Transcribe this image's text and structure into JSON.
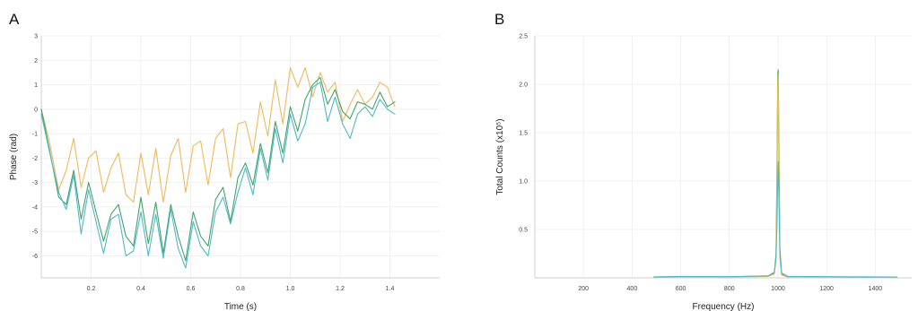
{
  "chart_data": [
    {
      "panel": "A",
      "type": "line",
      "xlabel": "Time (s)",
      "ylabel": "Phase (rad)",
      "xlim": [
        0,
        1.6
      ],
      "ylim": [
        -6.9,
        3
      ],
      "xticks": [
        "0.2",
        "0.4",
        "0.6",
        "0.8",
        "1.0",
        "1.2",
        "1.4"
      ],
      "xtick_values": [
        0.2,
        0.4,
        0.6,
        0.8,
        1.0,
        1.2,
        1.4
      ],
      "yticks": [
        "3",
        "2",
        "1",
        "0",
        "-1",
        "-2",
        "-3",
        "-4",
        "-5",
        "-6"
      ],
      "ytick_values": [
        3,
        2,
        1,
        0,
        -1,
        -2,
        -3,
        -4,
        -5,
        -6
      ],
      "grid": true,
      "series": [
        {
          "color": "#f0b95a",
          "x": [
            0.0,
            0.03,
            0.07,
            0.1,
            0.13,
            0.16,
            0.19,
            0.22,
            0.25,
            0.28,
            0.31,
            0.34,
            0.37,
            0.4,
            0.43,
            0.46,
            0.49,
            0.52,
            0.55,
            0.58,
            0.61,
            0.64,
            0.67,
            0.7,
            0.73,
            0.76,
            0.79,
            0.82,
            0.85,
            0.88,
            0.91,
            0.94,
            0.97,
            1.0,
            1.03,
            1.06,
            1.09,
            1.12,
            1.15,
            1.18,
            1.21,
            1.24,
            1.27,
            1.3,
            1.33,
            1.36,
            1.39,
            1.42
          ],
          "y": [
            0.0,
            -1.2,
            -3.3,
            -2.5,
            -1.2,
            -3.2,
            -2.0,
            -1.7,
            -3.4,
            -2.4,
            -1.8,
            -3.5,
            -3.8,
            -1.8,
            -3.5,
            -1.6,
            -3.8,
            -1.9,
            -1.2,
            -3.4,
            -1.5,
            -1.3,
            -3.1,
            -1.2,
            -0.8,
            -2.8,
            -0.6,
            -0.5,
            -1.8,
            0.3,
            -1.1,
            1.2,
            -0.6,
            1.7,
            0.9,
            1.7,
            0.5,
            1.5,
            0.7,
            1.1,
            -0.5,
            0.2,
            0.8,
            0.2,
            0.5,
            1.1,
            0.9,
            0.1
          ]
        },
        {
          "color": "#3fa56b",
          "x": [
            0.0,
            0.03,
            0.07,
            0.1,
            0.13,
            0.16,
            0.19,
            0.22,
            0.25,
            0.28,
            0.31,
            0.34,
            0.37,
            0.4,
            0.43,
            0.46,
            0.49,
            0.52,
            0.55,
            0.58,
            0.61,
            0.64,
            0.67,
            0.7,
            0.73,
            0.76,
            0.79,
            0.82,
            0.85,
            0.88,
            0.91,
            0.94,
            0.97,
            1.0,
            1.03,
            1.06,
            1.09,
            1.12,
            1.15,
            1.18,
            1.21,
            1.24,
            1.27,
            1.3,
            1.33,
            1.36,
            1.39,
            1.42
          ],
          "y": [
            0.0,
            -1.5,
            -3.6,
            -3.9,
            -2.5,
            -4.5,
            -3.0,
            -4.2,
            -5.4,
            -4.3,
            -3.9,
            -5.2,
            -5.6,
            -3.6,
            -5.5,
            -3.8,
            -5.9,
            -3.9,
            -5.2,
            -6.2,
            -4.2,
            -5.2,
            -5.6,
            -3.7,
            -3.2,
            -4.6,
            -2.8,
            -2.2,
            -3.1,
            -1.4,
            -2.6,
            -0.5,
            -1.8,
            0.1,
            -0.9,
            0.4,
            1.0,
            1.3,
            0.2,
            0.8,
            -0.1,
            -0.4,
            0.3,
            0.2,
            0.0,
            0.7,
            0.1,
            0.3
          ]
        },
        {
          "color": "#52b8c8",
          "x": [
            0.0,
            0.03,
            0.07,
            0.1,
            0.13,
            0.16,
            0.19,
            0.22,
            0.25,
            0.28,
            0.31,
            0.34,
            0.37,
            0.4,
            0.43,
            0.46,
            0.49,
            0.52,
            0.55,
            0.58,
            0.61,
            0.64,
            0.67,
            0.7,
            0.73,
            0.76,
            0.79,
            0.82,
            0.85,
            0.88,
            0.91,
            0.94,
            0.97,
            1.0,
            1.03,
            1.06,
            1.09,
            1.12,
            1.15,
            1.18,
            1.21,
            1.24,
            1.27,
            1.3,
            1.33,
            1.36,
            1.39,
            1.42
          ],
          "y": [
            -0.2,
            -1.6,
            -3.4,
            -4.1,
            -2.7,
            -5.1,
            -3.3,
            -4.6,
            -5.9,
            -4.5,
            -4.3,
            -6.0,
            -5.8,
            -4.2,
            -6.0,
            -4.3,
            -6.1,
            -4.1,
            -5.7,
            -6.5,
            -4.6,
            -5.6,
            -6.0,
            -4.2,
            -3.6,
            -4.7,
            -3.4,
            -2.4,
            -3.5,
            -1.6,
            -2.9,
            -0.8,
            -2.2,
            -0.2,
            -1.3,
            -0.6,
            0.9,
            1.1,
            -0.5,
            0.5,
            -0.6,
            -1.2,
            -0.2,
            0.1,
            -0.3,
            0.4,
            0.0,
            -0.2
          ]
        }
      ]
    },
    {
      "panel": "B",
      "type": "line",
      "xlabel": "Frequency (Hz)",
      "ylabel": "Total Counts (x10⁵)",
      "xlim": [
        0,
        1550
      ],
      "ylim": [
        0,
        2.5
      ],
      "xticks": [
        "200",
        "400",
        "600",
        "800",
        "1000",
        "1200",
        "1400"
      ],
      "xtick_values": [
        200,
        400,
        600,
        800,
        1000,
        1200,
        1400
      ],
      "yticks": [
        "2.5",
        "2.0",
        "1.5",
        "1.0",
        "0.5"
      ],
      "ytick_values": [
        2.5,
        2.0,
        1.5,
        1.0,
        0.5
      ],
      "grid": true,
      "series": [
        {
          "color": "#3fa56b",
          "x": [
            490,
            600,
            800,
            960,
            985,
            992,
            996,
            999,
            1001,
            1004,
            1008,
            1015,
            1040,
            1200,
            1490
          ],
          "y": [
            0.005,
            0.01,
            0.01,
            0.02,
            0.05,
            0.25,
            1.2,
            2.1,
            2.15,
            1.3,
            0.3,
            0.04,
            0.01,
            0.01,
            0.005
          ]
        },
        {
          "color": "#e8c040",
          "x": [
            490,
            600,
            800,
            960,
            985,
            992,
            996,
            999,
            1001,
            1004,
            1008,
            1015,
            1040,
            1200,
            1490
          ],
          "y": [
            0.004,
            0.008,
            0.008,
            0.015,
            0.04,
            0.2,
            1.0,
            2.0,
            2.1,
            1.0,
            0.2,
            0.03,
            0.008,
            0.008,
            0.004
          ]
        },
        {
          "color": "#52b8c8",
          "x": [
            490,
            600,
            800,
            960,
            985,
            992,
            996,
            999,
            1001,
            1004,
            1008,
            1015,
            1040,
            1200,
            1490
          ],
          "y": [
            0.01,
            0.015,
            0.012,
            0.02,
            0.06,
            0.2,
            0.6,
            1.0,
            1.2,
            0.8,
            0.25,
            0.05,
            0.015,
            0.012,
            0.008
          ]
        }
      ]
    }
  ],
  "panels": {
    "a_label": "A",
    "b_label": "B"
  }
}
